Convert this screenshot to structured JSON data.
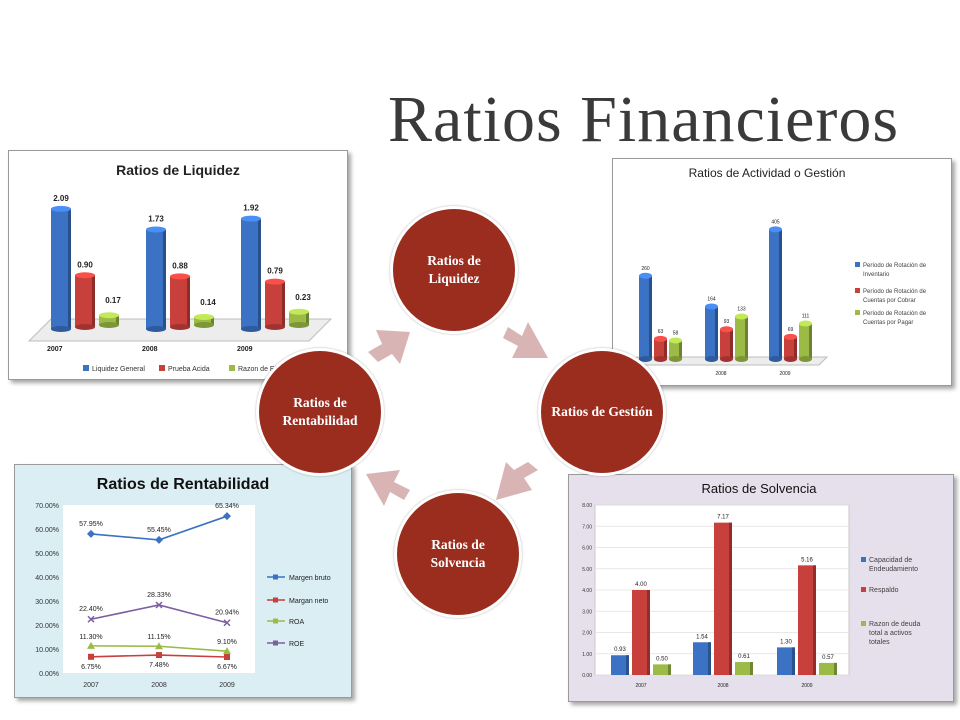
{
  "slide": {
    "title": "Ratios Financieros"
  },
  "cycle": {
    "items": [
      {
        "label": "Ratios de Liquidez"
      },
      {
        "label": "Ratios de Gestión"
      },
      {
        "label": "Ratios de Solvencia"
      },
      {
        "label": "Ratios de Rentabilidad"
      }
    ],
    "fill_color": "#9b2d1f",
    "arrow_color": "#d9b4b4"
  },
  "chart_data": [
    {
      "id": "liquidez",
      "type": "bar",
      "title": "Ratios de Liquidez",
      "categories": [
        "2007",
        "2008",
        "2009"
      ],
      "series": [
        {
          "name": "Liquidez General",
          "values": [
            2.09,
            1.73,
            1.92
          ],
          "labels": [
            "2.09",
            "1.73",
            "1.92"
          ],
          "color": "#3b72c4"
        },
        {
          "name": "Prueba Acida",
          "values": [
            0.9,
            0.88,
            0.79
          ],
          "labels": [
            "0.90",
            "0.88",
            "0.79"
          ],
          "color": "#c8403c"
        },
        {
          "name": "Razon de Efect",
          "values": [
            0.17,
            0.14,
            0.23
          ],
          "labels": [
            "0.17",
            "0.14",
            "0.23"
          ],
          "color": "#9bbb46"
        }
      ],
      "ylim": [
        0,
        2.4
      ],
      "legend": "bottom"
    },
    {
      "id": "actividad",
      "type": "bar",
      "title": "Ratios de Actividad o Gestión",
      "categories": [
        "",
        "2008",
        "2009"
      ],
      "series": [
        {
          "name": "Período de Rotación de Inventario",
          "values": [
            260,
            164,
            405
          ],
          "labels": [
            "260",
            "164",
            "405"
          ],
          "color": "#3b72c4"
        },
        {
          "name": "Período de Rotación de Cuentas por Cobrar",
          "values": [
            63,
            93,
            69
          ],
          "labels": [
            "63",
            "93",
            "69"
          ],
          "color": "#c8403c"
        },
        {
          "name": "Período de Rotación de Cuentas por Pagar",
          "values": [
            58,
            133,
            111
          ],
          "labels": [
            "58",
            "133",
            "111"
          ],
          "color": "#9bbb46"
        }
      ],
      "ylim": [
        0,
        450
      ],
      "legend": "right"
    },
    {
      "id": "rentabilidad",
      "type": "line",
      "title": "Ratios de Rentabilidad",
      "categories": [
        "2007",
        "2008",
        "2009"
      ],
      "series": [
        {
          "name": "Margen bruto",
          "values": [
            57.95,
            55.45,
            65.34
          ],
          "labels": [
            "57.95%",
            "55.45%",
            "65.34%"
          ],
          "color": "#3b72c4",
          "marker": "diamond"
        },
        {
          "name": "Margan neto",
          "values": [
            6.75,
            7.48,
            6.67
          ],
          "labels": [
            "6.75%",
            "7.48%",
            "6.67%"
          ],
          "color": "#c8403c",
          "marker": "square"
        },
        {
          "name": "ROA",
          "values": [
            11.3,
            11.15,
            9.1
          ],
          "labels": [
            "11.30%",
            "11.15%",
            "9.10%"
          ],
          "color": "#9bbb46",
          "marker": "triangle"
        },
        {
          "name": "ROE",
          "values": [
            22.4,
            28.33,
            20.94
          ],
          "labels": [
            "22.40%",
            "28.33%",
            "20.94%"
          ],
          "color": "#7d5fa0",
          "marker": "x"
        }
      ],
      "yticks": [
        "0.00%",
        "10.00%",
        "20.00%",
        "30.00%",
        "40.00%",
        "50.00%",
        "60.00%",
        "70.00%"
      ],
      "ylim": [
        0,
        70
      ],
      "grid": false,
      "legend": "right"
    },
    {
      "id": "solvencia",
      "type": "bar",
      "title": "Ratios de Solvencia",
      "categories": [
        "2007",
        "2008",
        "2009"
      ],
      "series": [
        {
          "name": "Capacidad de Endeudamiento",
          "values": [
            0.93,
            1.54,
            1.3
          ],
          "labels": [
            "0.93",
            "1.54",
            "1.30"
          ],
          "color": "#3b72c4"
        },
        {
          "name": "Respaldo",
          "values": [
            4.0,
            7.17,
            5.16
          ],
          "labels": [
            "4.00",
            "7.17",
            "5.16"
          ],
          "color": "#c8403c"
        },
        {
          "name": "Razon de deuda total a activos totales",
          "values": [
            0.5,
            0.61,
            0.57
          ],
          "labels": [
            "0.50",
            "0.61",
            "0.57"
          ],
          "color": "#9bbb46"
        }
      ],
      "yticks": [
        "0.00",
        "1.00",
        "2.00",
        "3.00",
        "4.00",
        "5.00",
        "6.00",
        "7.00",
        "8.00"
      ],
      "ylim": [
        0,
        8
      ],
      "grid": true,
      "legend": "right"
    }
  ]
}
